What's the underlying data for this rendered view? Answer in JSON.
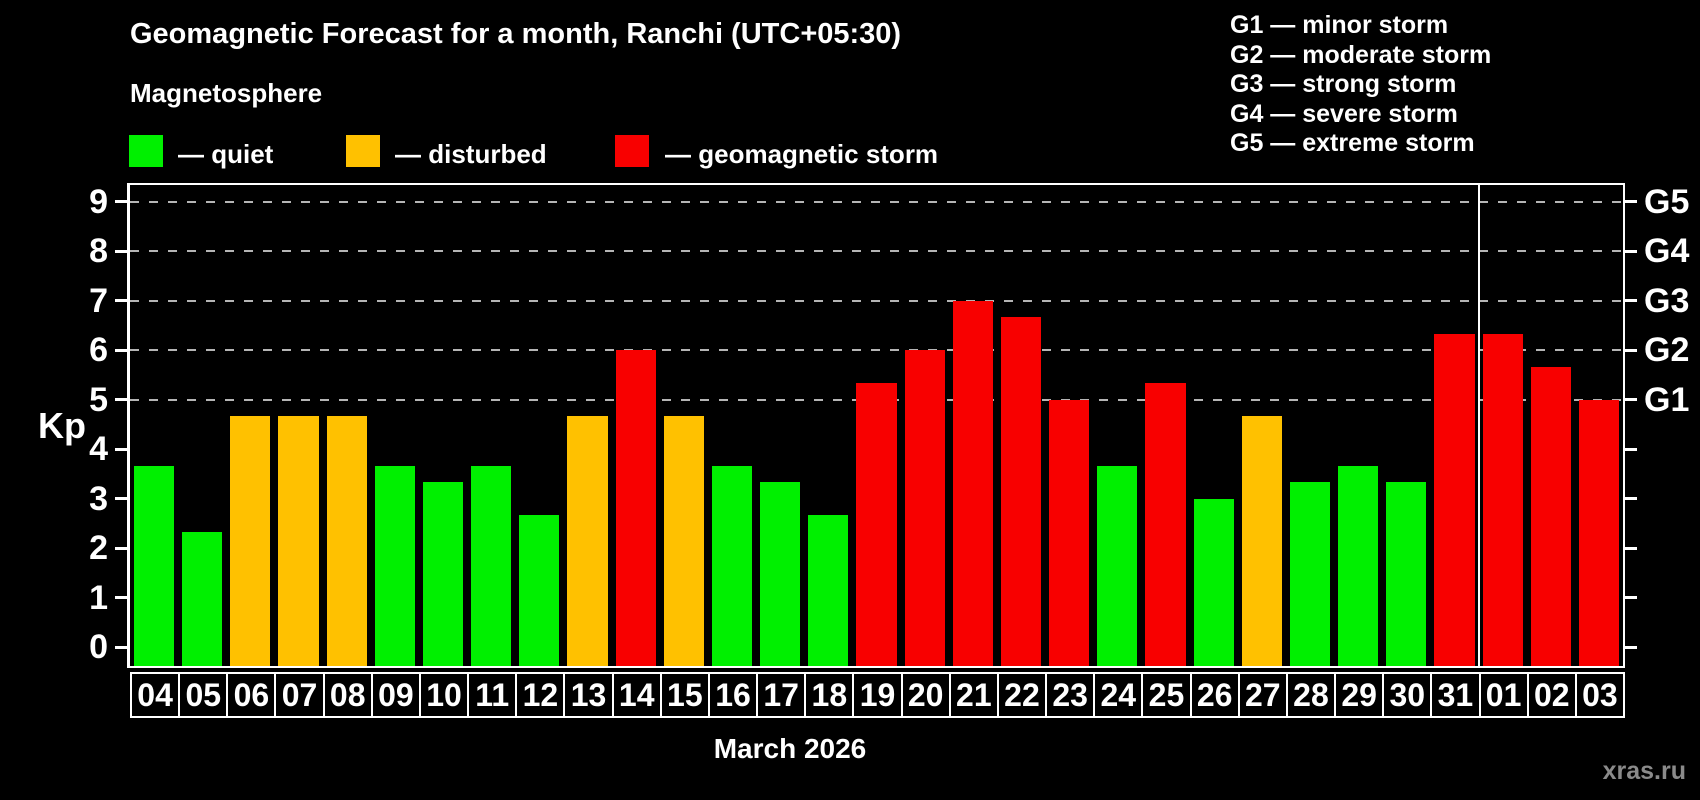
{
  "header": {
    "title": "Geomagnetic Forecast for a month, Ranchi (UTC+05:30)",
    "subtitle": "Magnetosphere"
  },
  "legend": {
    "quiet": {
      "label": "— quiet",
      "color": "#00f000"
    },
    "disturbed": {
      "label": "— disturbed",
      "color": "#ffc100"
    },
    "storm": {
      "label": "— geomagnetic storm",
      "color": "#f80000"
    }
  },
  "g_legend": {
    "lines": [
      "G1 — minor storm",
      "G2 — moderate storm",
      "G3 — strong storm",
      "G4 — severe storm",
      "G5 — extreme storm"
    ]
  },
  "footer": {
    "month_title": "March 2026",
    "watermark": "xras.ru"
  },
  "chart_data": {
    "type": "bar",
    "title": "Geomagnetic Forecast for a month, Ranchi (UTC+05:30)",
    "ylabel": "Kp",
    "ylim": [
      0,
      9
    ],
    "y_ticks": [
      0,
      1,
      2,
      3,
      4,
      5,
      6,
      7,
      8,
      9
    ],
    "gridlines": [
      5,
      6,
      7,
      8,
      9
    ],
    "grid": "dashed horizontal at storm levels only",
    "legend_position": "top",
    "categories": [
      "04",
      "05",
      "06",
      "07",
      "08",
      "09",
      "10",
      "11",
      "12",
      "13",
      "14",
      "15",
      "16",
      "17",
      "18",
      "19",
      "20",
      "21",
      "22",
      "23",
      "24",
      "25",
      "26",
      "27",
      "28",
      "29",
      "30",
      "31",
      "01",
      "02",
      "03"
    ],
    "values": [
      3.67,
      2.33,
      4.67,
      4.67,
      4.67,
      3.67,
      3.33,
      3.67,
      2.67,
      4.67,
      6.0,
      4.67,
      3.67,
      3.33,
      2.67,
      5.33,
      6.0,
      7.0,
      6.67,
      5.0,
      3.67,
      5.33,
      3.0,
      4.67,
      3.33,
      3.67,
      3.33,
      6.33,
      6.33,
      5.67,
      5.0
    ],
    "statuses": [
      "quiet",
      "quiet",
      "disturbed",
      "disturbed",
      "disturbed",
      "quiet",
      "quiet",
      "quiet",
      "quiet",
      "disturbed",
      "storm",
      "disturbed",
      "quiet",
      "quiet",
      "quiet",
      "storm",
      "storm",
      "storm",
      "storm",
      "storm",
      "quiet",
      "storm",
      "quiet",
      "disturbed",
      "quiet",
      "quiet",
      "quiet",
      "storm",
      "storm",
      "storm",
      "storm"
    ],
    "status_colors": {
      "quiet": "#00f000",
      "disturbed": "#ffc100",
      "storm": "#f80000"
    },
    "right_axis_labels": [
      {
        "value": 5,
        "label": "G1"
      },
      {
        "value": 6,
        "label": "G2"
      },
      {
        "value": 7,
        "label": "G3"
      },
      {
        "value": 8,
        "label": "G4"
      },
      {
        "value": 9,
        "label": "G5"
      }
    ],
    "month_separator_after_index": 27,
    "xlabel": "March 2026"
  }
}
